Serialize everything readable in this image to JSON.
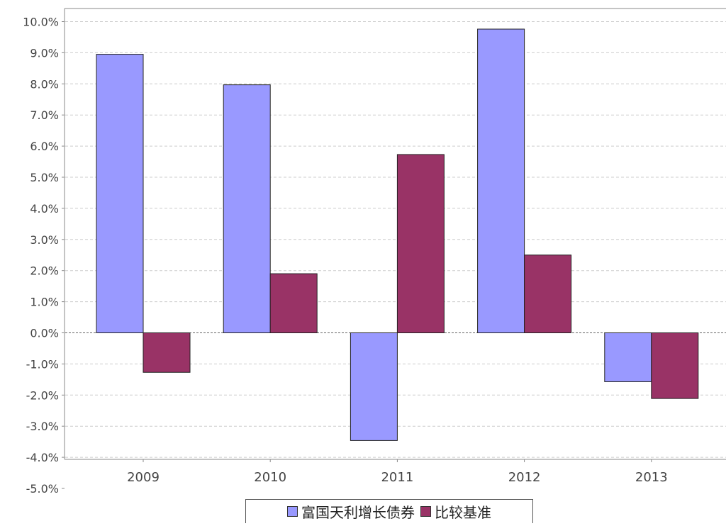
{
  "chart_data": {
    "type": "bar",
    "categories": [
      "2009",
      "2010",
      "2011",
      "2012",
      "2013"
    ],
    "series": [
      {
        "name": "富国天利增长债券",
        "values": [
          8.95,
          7.97,
          -3.46,
          9.76,
          -1.57
        ],
        "color": "#9999ff"
      },
      {
        "name": "比较基准",
        "values": [
          -1.27,
          1.9,
          5.73,
          2.5,
          -2.11
        ],
        "color": "#993366"
      }
    ],
    "yticks": [
      "10.0%",
      "9.0%",
      "8.0%",
      "7.0%",
      "6.0%",
      "5.0%",
      "4.0%",
      "3.0%",
      "2.0%",
      "1.0%",
      "0.0%",
      "-1.0%",
      "-2.0%",
      "-3.0%",
      "-4.0%",
      "-5.0%"
    ],
    "ylim": [
      -4.0,
      10.0
    ],
    "grid": true,
    "legend_position": "bottom-center"
  }
}
